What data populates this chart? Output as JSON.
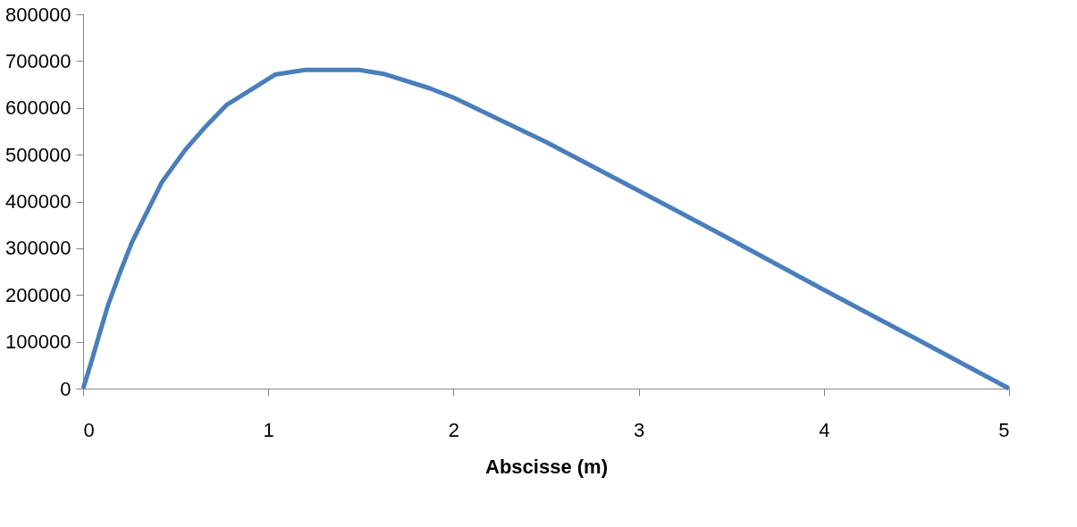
{
  "chart_data": {
    "type": "line",
    "xlabel": "Abscisse (m)",
    "xlim": [
      0,
      5
    ],
    "xticks": [
      0,
      1,
      2,
      3,
      4,
      5
    ],
    "ylim": [
      0,
      800000
    ],
    "yticks": [
      0,
      100000,
      200000,
      300000,
      400000,
      500000,
      600000,
      700000,
      800000
    ],
    "grid": false,
    "legend": false,
    "marker": "none",
    "line_style": "solid",
    "series": [
      {
        "color": "#4a7ebb",
        "x": [
          0,
          0.04,
          0.087,
          0.135,
          0.2,
          0.264,
          0.328,
          0.425,
          0.553,
          0.666,
          0.777,
          0.907,
          1.036,
          1.2,
          1.49,
          1.63,
          1.87,
          2,
          2.5,
          3,
          3.5,
          4,
          4.5,
          5
        ],
        "values": [
          0,
          51000,
          115000,
          179000,
          249000,
          313000,
          364000,
          441000,
          511000,
          562000,
          607000,
          639000,
          671000,
          681000,
          681000,
          672000,
          642000,
          622000,
          527000,
          423000,
          318000,
          211000,
          106000,
          0
        ]
      }
    ]
  }
}
